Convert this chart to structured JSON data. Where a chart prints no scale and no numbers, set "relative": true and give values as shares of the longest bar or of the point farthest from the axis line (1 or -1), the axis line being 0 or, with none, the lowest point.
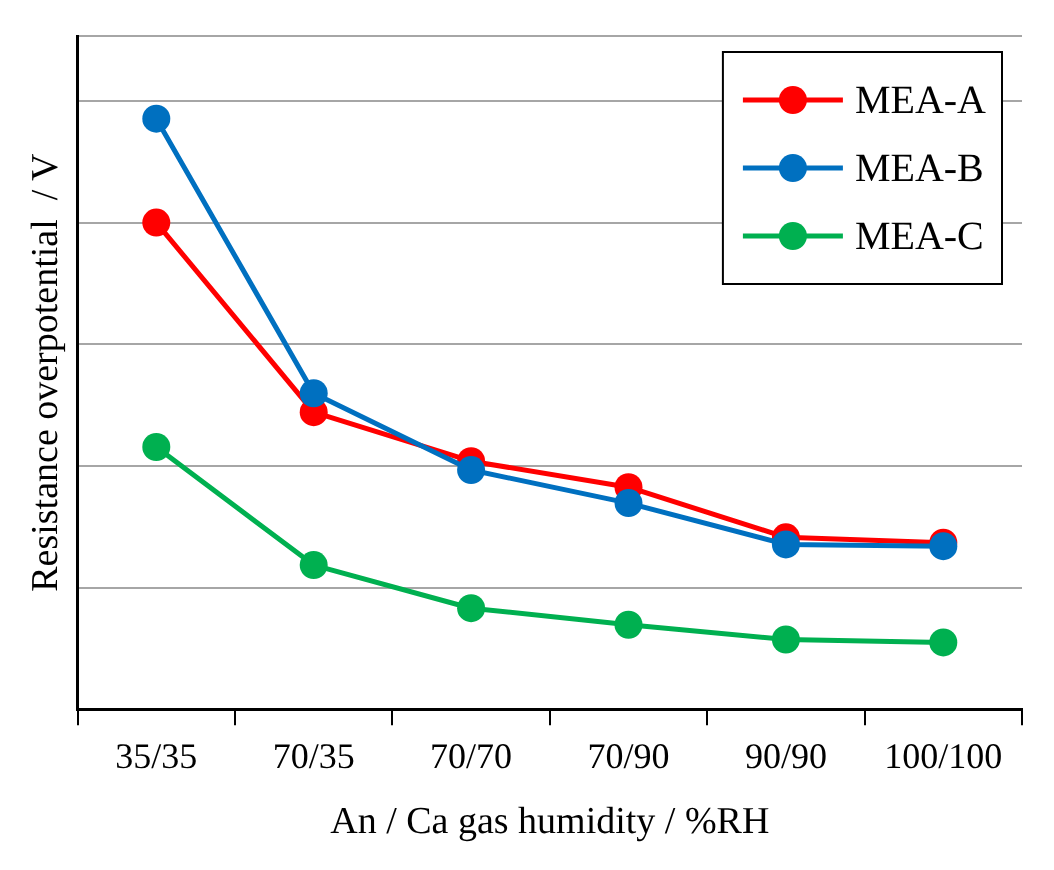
{
  "chart_data": {
    "type": "line",
    "xlabel": "An / Ca gas humidity / %RH",
    "ylabel": "Resistance overpotential  / V",
    "relative": true,
    "categories": [
      "35/35",
      "70/35",
      "70/70",
      "70/90",
      "90/90",
      "100/100"
    ],
    "series": [
      {
        "name": "MEA-A",
        "color": "#ff0000",
        "values": [
          0.824,
          0.503,
          0.42,
          0.376,
          0.291,
          0.282
        ]
      },
      {
        "name": "MEA-B",
        "color": "#0070c0",
        "values": [
          1,
          0.535,
          0.405,
          0.349,
          0.279,
          0.276
        ]
      },
      {
        "name": "MEA-C",
        "color": "#00b050",
        "values": [
          0.444,
          0.244,
          0.171,
          0.143,
          0.118,
          0.113
        ]
      }
    ],
    "grid": "y",
    "legend": "top right",
    "marker": "circle",
    "line_style": "solid"
  }
}
